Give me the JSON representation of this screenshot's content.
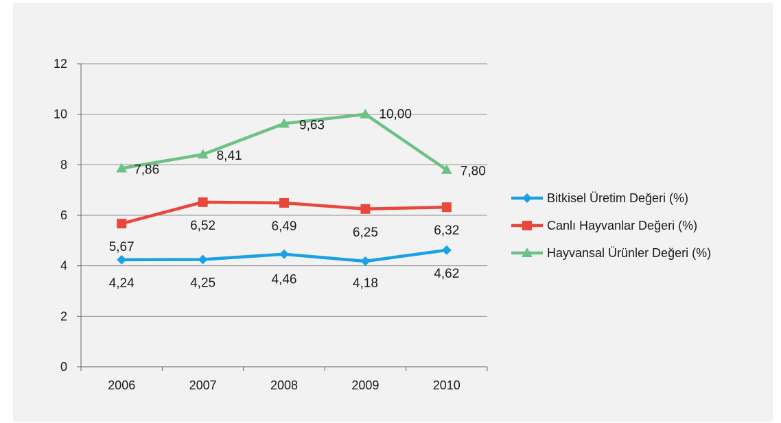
{
  "chart_data": {
    "type": "line",
    "categories": [
      "2006",
      "2007",
      "2008",
      "2009",
      "2010"
    ],
    "ylim": [
      0,
      12
    ],
    "yticks": [
      0,
      2,
      4,
      6,
      8,
      10,
      12
    ],
    "ytick_labels": [
      "0",
      "2",
      "4",
      "6",
      "8",
      "10",
      "12"
    ],
    "grid": true,
    "legend_position": "right",
    "series": [
      {
        "name": "Bitkisel Üretim Değeri (%)",
        "values": [
          4.24,
          4.25,
          4.46,
          4.18,
          4.62
        ],
        "labels": [
          "4,24",
          "4,25",
          "4,46",
          "4,18",
          "4,62"
        ],
        "color": "#1ba1e2",
        "marker": "diamond"
      },
      {
        "name": "Canlı Hayvanlar Değeri (%)",
        "values": [
          5.67,
          6.52,
          6.49,
          6.25,
          6.32
        ],
        "labels": [
          "5,67",
          "6,52",
          "6,49",
          "6,25",
          "6,32"
        ],
        "color": "#e8473c",
        "marker": "square"
      },
      {
        "name": "Hayvansal Ürünler Değeri (%)",
        "values": [
          7.86,
          8.41,
          9.63,
          10.0,
          7.8
        ],
        "labels": [
          "7,86",
          "8,41",
          "9,63",
          "10,00",
          "7,80"
        ],
        "color": "#6ec185",
        "marker": "triangle"
      }
    ]
  }
}
